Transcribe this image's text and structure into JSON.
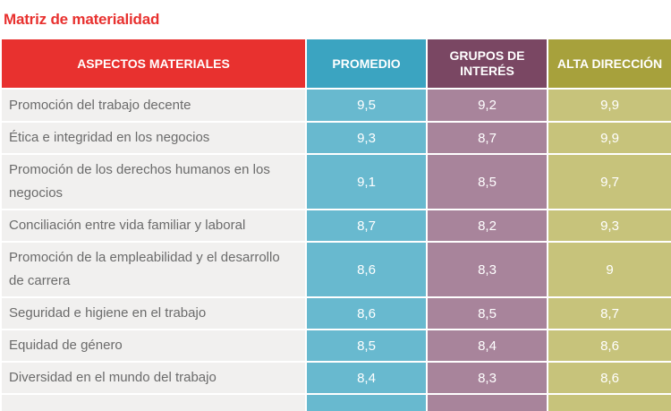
{
  "title": "Matriz de materialidad",
  "headers": {
    "aspect": "ASPECTOS MATERIALES",
    "promedio": "PROMEDIO",
    "grupos": "GRUPOS DE INTERÉS",
    "alta": "ALTA DIRECCIÓN"
  },
  "colors": {
    "title": "#e8312f",
    "header_aspect": "#e8312f",
    "header_promedio": "#3ba4c1",
    "header_grupos": "#7a4763",
    "header_alta": "#a7a13c"
  },
  "rows": [
    {
      "aspect": "Promoción del trabajo decente",
      "promedio": "9,5",
      "grupos": "9,2",
      "alta": "9,9"
    },
    {
      "aspect": "Ética e integridad en los negocios",
      "promedio": "9,3",
      "grupos": "8,7",
      "alta": "9,9"
    },
    {
      "aspect": "Promoción de los derechos humanos en los negocios",
      "promedio": "9,1",
      "grupos": "8,5",
      "alta": "9,7"
    },
    {
      "aspect": "Conciliación entre vida familiar y laboral",
      "promedio": "8,7",
      "grupos": "8,2",
      "alta": "9,3"
    },
    {
      "aspect": "Promoción de la empleabilidad y el desarrollo de carrera",
      "promedio": "8,6",
      "grupos": "8,3",
      "alta": "9"
    },
    {
      "aspect": "Seguridad e higiene en el trabajo",
      "promedio": "8,6",
      "grupos": "8,5",
      "alta": "8,7"
    },
    {
      "aspect": "Equidad de género",
      "promedio": "8,5",
      "grupos": "8,4",
      "alta": "8,6"
    },
    {
      "aspect": "Diversidad en el mundo del trabajo",
      "promedio": "8,4",
      "grupos": "8,3",
      "alta": "8,6"
    },
    {
      "aspect": "",
      "promedio": "",
      "grupos": "",
      "alta": ""
    }
  ]
}
